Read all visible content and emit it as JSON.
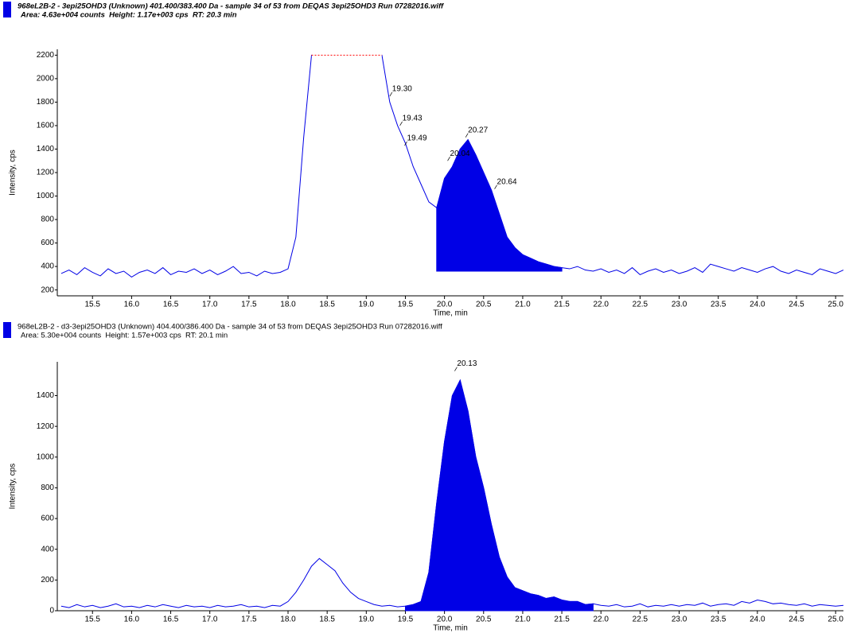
{
  "chart_data": [
    {
      "type": "line",
      "title": "968eL2B-2 - 3epi25OHD3 (Unknown) 401.400/383.400 Da - sample 34 of 53 from DEQAS 3epi25OHD3 Run 07282016.wiff",
      "subtitle": "Area: 4.63e+004 counts  Height: 1.17e+003 cps  RT: 20.3 min",
      "x_label": "Time, min",
      "y_label": "Intensity, cps",
      "color": "#0000e6",
      "x": [
        15.1,
        15.2,
        15.3,
        15.4,
        15.5,
        15.6,
        15.7,
        15.8,
        15.9,
        16.0,
        16.1,
        16.2,
        16.3,
        16.4,
        16.5,
        16.6,
        16.7,
        16.8,
        16.9,
        17.0,
        17.1,
        17.2,
        17.3,
        17.4,
        17.5,
        17.6,
        17.7,
        17.8,
        17.9,
        18.0,
        18.1,
        18.2,
        18.3,
        18.4,
        18.5,
        18.6,
        18.7,
        18.8,
        18.9,
        19.0,
        19.1,
        19.2,
        19.3,
        19.4,
        19.5,
        19.6,
        19.7,
        19.8,
        19.9,
        20.0,
        20.1,
        20.2,
        20.3,
        20.4,
        20.5,
        20.6,
        20.7,
        20.8,
        20.9,
        21.0,
        21.1,
        21.2,
        21.3,
        21.4,
        21.5,
        21.6,
        21.7,
        21.8,
        21.9,
        22.0,
        22.1,
        22.2,
        22.3,
        22.4,
        22.5,
        22.6,
        22.7,
        22.8,
        22.9,
        23.0,
        23.1,
        23.2,
        23.3,
        23.4,
        23.5,
        23.6,
        23.7,
        23.8,
        23.9,
        24.0,
        24.1,
        24.2,
        24.3,
        24.4,
        24.5,
        24.6,
        24.7,
        24.8,
        24.9,
        25.0,
        25.1
      ],
      "values": [
        340,
        370,
        330,
        390,
        350,
        320,
        380,
        340,
        360,
        310,
        350,
        370,
        340,
        390,
        330,
        360,
        350,
        380,
        340,
        370,
        330,
        360,
        400,
        340,
        350,
        320,
        360,
        340,
        350,
        380,
        650,
        1500,
        2200,
        2200,
        2200,
        2200,
        2200,
        2200,
        2200,
        2200,
        2200,
        2200,
        1800,
        1600,
        1450,
        1250,
        1100,
        950,
        900,
        1150,
        1250,
        1400,
        1480,
        1350,
        1200,
        1050,
        850,
        650,
        560,
        500,
        470,
        440,
        420,
        400,
        390,
        380,
        400,
        370,
        360,
        380,
        350,
        370,
        340,
        390,
        330,
        360,
        380,
        350,
        370,
        340,
        360,
        390,
        350,
        420,
        400,
        380,
        360,
        390,
        370,
        350,
        380,
        400,
        360,
        340,
        370,
        350,
        330,
        380,
        360,
        340,
        370
      ],
      "fill": {
        "from": 19.9,
        "to": 21.5,
        "base": 360,
        "color": "#0000e6"
      },
      "saturation": {
        "level": 2200,
        "color": "#ff0000"
      },
      "annotations": [
        {
          "text": "19.30",
          "x": 19.3,
          "y": 1850
        },
        {
          "text": "19.43",
          "x": 19.43,
          "y": 1600
        },
        {
          "text": "19.49",
          "x": 19.49,
          "y": 1430
        },
        {
          "text": "20.04",
          "x": 20.04,
          "y": 1300
        },
        {
          "text": "20.27",
          "x": 20.27,
          "y": 1500
        },
        {
          "text": "20.64",
          "x": 20.64,
          "y": 1060
        }
      ],
      "xlim": [
        15.05,
        25.1
      ],
      "xticks": [
        15.5,
        {
          "value": 16,
          "label": "16.0"
        },
        16.5,
        {
          "value": 17,
          "label": "17.0"
        },
        17.5,
        {
          "value": 18,
          "label": "18.0"
        },
        18.5,
        {
          "value": 19,
          "label": "19.0"
        },
        19.5,
        {
          "value": 20,
          "label": "20.0"
        },
        20.5,
        {
          "value": 21,
          "label": "21.0"
        },
        21.5,
        {
          "value": 22,
          "label": "22.0"
        },
        22.5,
        {
          "value": 23,
          "label": "23.0"
        },
        23.5,
        {
          "value": 24,
          "label": "24.0"
        },
        24.5,
        {
          "value": 25,
          "label": "25.0"
        }
      ],
      "ylim": [
        150,
        2250
      ],
      "yticks": [
        200,
        400,
        600,
        800,
        1000,
        1200,
        1400,
        1600,
        1800,
        2000,
        2200
      ]
    },
    {
      "type": "line",
      "title": "968eL2B-2 - d3-3epi25OHD3 (Unknown) 404.400/386.400 Da - sample 34 of 53 from DEQAS 3epi25OHD3 Run 07282016.wiff",
      "subtitle": "Area: 5.30e+004 counts  Height: 1.57e+003 cps  RT: 20.1 min",
      "x_label": "Time, min",
      "y_label": "Intensity, cps",
      "color": "#0000e6",
      "x": [
        15.1,
        15.2,
        15.3,
        15.4,
        15.5,
        15.6,
        15.7,
        15.8,
        15.9,
        16.0,
        16.1,
        16.2,
        16.3,
        16.4,
        16.5,
        16.6,
        16.7,
        16.8,
        16.9,
        17.0,
        17.1,
        17.2,
        17.3,
        17.4,
        17.5,
        17.6,
        17.7,
        17.8,
        17.9,
        18.0,
        18.1,
        18.2,
        18.3,
        18.4,
        18.5,
        18.6,
        18.7,
        18.8,
        18.9,
        19.0,
        19.1,
        19.2,
        19.3,
        19.4,
        19.5,
        19.6,
        19.7,
        19.8,
        19.9,
        20.0,
        20.1,
        20.2,
        20.3,
        20.4,
        20.5,
        20.6,
        20.7,
        20.8,
        20.9,
        21.0,
        21.1,
        21.2,
        21.3,
        21.4,
        21.5,
        21.6,
        21.7,
        21.8,
        21.9,
        22.0,
        22.1,
        22.2,
        22.3,
        22.4,
        22.5,
        22.6,
        22.7,
        22.8,
        22.9,
        23.0,
        23.1,
        23.2,
        23.3,
        23.4,
        23.5,
        23.6,
        23.7,
        23.8,
        23.9,
        24.0,
        24.1,
        24.2,
        24.3,
        24.4,
        24.5,
        24.6,
        24.7,
        24.8,
        24.9,
        25.0,
        25.1
      ],
      "values": [
        30,
        20,
        40,
        25,
        35,
        20,
        30,
        45,
        25,
        30,
        20,
        35,
        25,
        40,
        30,
        20,
        35,
        25,
        30,
        20,
        35,
        25,
        30,
        40,
        25,
        30,
        20,
        35,
        30,
        60,
        120,
        200,
        290,
        340,
        300,
        260,
        180,
        120,
        80,
        60,
        40,
        30,
        35,
        25,
        30,
        40,
        60,
        250,
        700,
        1100,
        1400,
        1500,
        1300,
        1000,
        800,
        560,
        350,
        220,
        150,
        130,
        110,
        100,
        80,
        90,
        70,
        60,
        60,
        40,
        45,
        35,
        30,
        40,
        25,
        30,
        45,
        25,
        35,
        30,
        40,
        30,
        40,
        35,
        50,
        30,
        40,
        45,
        35,
        60,
        50,
        70,
        60,
        45,
        50,
        40,
        35,
        45,
        30,
        40,
        35,
        30,
        35
      ],
      "fill": {
        "from": 19.5,
        "to": 21.9,
        "base": 0,
        "color": "#0000e6"
      },
      "annotations": [
        {
          "text": "20.13",
          "x": 20.13,
          "y": 1560
        }
      ],
      "xlim": [
        15.05,
        25.1
      ],
      "xticks": [
        15.5,
        {
          "value": 16,
          "label": "16.0"
        },
        16.5,
        {
          "value": 17,
          "label": "17.0"
        },
        17.5,
        {
          "value": 18,
          "label": "18.0"
        },
        18.5,
        {
          "value": 19,
          "label": "19.0"
        },
        19.5,
        {
          "value": 20,
          "label": "20.0"
        },
        20.5,
        {
          "value": 21,
          "label": "21.0"
        },
        21.5,
        {
          "value": 22,
          "label": "22.0"
        },
        22.5,
        {
          "value": 23,
          "label": "23.0"
        },
        23.5,
        {
          "value": 24,
          "label": "24.0"
        },
        24.5,
        {
          "value": 25,
          "label": "25.0"
        }
      ],
      "ylim": [
        0,
        1620
      ],
      "yticks": [
        0,
        200,
        400,
        600,
        800,
        1000,
        1200,
        1400
      ]
    }
  ]
}
